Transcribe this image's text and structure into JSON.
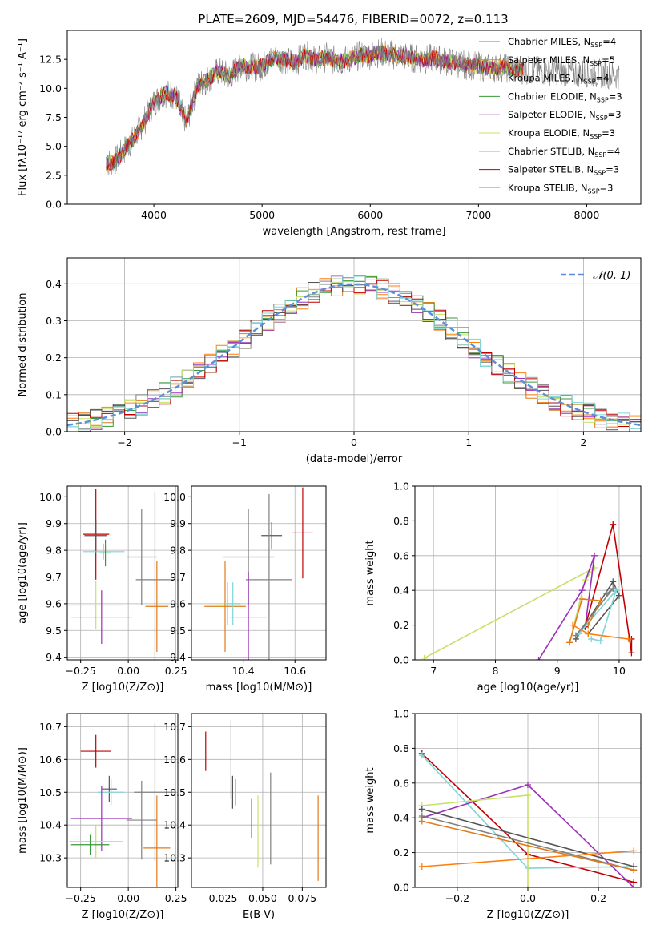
{
  "figure": {
    "title": "PLATE=2609, MJD=54476, FIBERID=0072, z=0.113"
  },
  "colors": {
    "Chabrier MILES": "#808080",
    "Salpeter MILES": "#ff7f0e",
    "Kroupa MILES": "#e07b1a",
    "Chabrier ELODIE": "#3a9a3a",
    "Salpeter ELODIE": "#9b30b8",
    "Kroupa ELODIE": "#c8e06a",
    "Chabrier STELIB": "#555555",
    "Salpeter STELIB": "#c00000",
    "Kroupa STELIB": "#7ed6d6"
  },
  "chart_data": [
    {
      "id": "spectrum",
      "type": "line",
      "xlabel": "wavelength [Angstrom, rest frame]",
      "ylabel": "Flux [fλ10⁻¹⁷ erg cm⁻² s⁻¹ A⁻¹]",
      "xlim": [
        3200,
        8500
      ],
      "ylim": [
        0,
        15
      ],
      "xticks": [
        4000,
        5000,
        6000,
        7000,
        8000
      ],
      "yticks": [
        0.0,
        2.5,
        5.0,
        7.5,
        10.0,
        12.5
      ],
      "grid": false,
      "legend_placement": "right",
      "legend": [
        "Chabrier MILES, N_SSP=4",
        "Salpeter MILES, N_SSP=5",
        "Kroupa MILES, N_SSP=4",
        "Chabrier ELODIE, N_SSP=3",
        "Salpeter ELODIE, N_SSP=3",
        "Kroupa ELODIE, N_SSP=3",
        "Chabrier STELIB, N_SSP=4",
        "Salpeter STELIB, N_SSP=3",
        "Kroupa STELIB, N_SSP=3"
      ],
      "series": [
        {
          "name": "data",
          "x": [
            3560,
            3650,
            3800,
            3900,
            4000,
            4100,
            4200,
            4300,
            4400,
            4500,
            4600,
            4700,
            4800,
            4900,
            5000,
            5100,
            5200,
            5300,
            5400,
            5500,
            5600,
            5700,
            5800,
            5900,
            6000,
            6100,
            6200,
            6300,
            6400,
            6500,
            6600,
            6700,
            6800,
            6900,
            7000,
            7100,
            7200,
            7300,
            7400,
            7600,
            7800,
            8000,
            8200,
            8300
          ],
          "y": [
            3.5,
            3.8,
            5.5,
            7.0,
            8.8,
            9.6,
            9.4,
            7.0,
            10.2,
            10.8,
            11.5,
            11.0,
            12.0,
            11.8,
            11.9,
            12.6,
            12.5,
            12.2,
            12.9,
            12.4,
            12.7,
            12.3,
            12.5,
            12.8,
            12.9,
            13.1,
            12.9,
            12.8,
            12.6,
            12.5,
            12.6,
            12.3,
            12.2,
            12.0,
            11.9,
            11.7,
            11.8,
            11.7,
            11.6,
            11.5,
            11.4,
            11.3,
            11.2,
            11.1
          ]
        }
      ]
    },
    {
      "id": "residuals",
      "type": "step",
      "xlabel": "(data-model)/error",
      "ylabel": "Normed distribution",
      "xlim": [
        -2.5,
        2.5
      ],
      "ylim": [
        0,
        0.47
      ],
      "xticks": [
        -2,
        -1,
        0,
        1,
        2
      ],
      "yticks": [
        0.0,
        0.1,
        0.2,
        0.3,
        0.4
      ],
      "grid": true,
      "legend": [
        "𝒩(0, 1)"
      ],
      "legend_placement": "top-right",
      "gaussian": {
        "mu": 0,
        "sigma": 1,
        "color": "#5b8fd9"
      }
    },
    {
      "id": "age_vs_Z",
      "type": "errorbar",
      "xlabel": "Z [log10(Z/Z⊙)]",
      "ylabel": "age  [log10(age/yr)]",
      "xlim": [
        -0.32,
        0.26
      ],
      "ylim": [
        9.39,
        10.04
      ],
      "xticks": [
        -0.25,
        0.0,
        0.25
      ],
      "xticklabels": [
        "−0.25",
        "0.00",
        "0.25"
      ],
      "yticks": [
        9.4,
        9.5,
        9.6,
        9.7,
        9.8,
        9.9,
        10.0
      ],
      "grid": true,
      "points": [
        {
          "series": "Salpeter STELIB",
          "x": -0.17,
          "y": 9.86,
          "xerr": 0.07,
          "yerr": 0.17
        },
        {
          "series": "Chabrier STELIB",
          "x": -0.17,
          "y": 9.855,
          "xerr": 0.06,
          "yerr": 0.06
        },
        {
          "series": "Kroupa STELIB",
          "x": -0.13,
          "y": 9.795,
          "xerr": 0.11,
          "yerr": 0.03
        },
        {
          "series": "Chabrier ELODIE",
          "x": -0.12,
          "y": 9.79,
          "xerr": 0.03,
          "yerr": 0.05
        },
        {
          "series": "Chabrier MILES",
          "x": 0.07,
          "y": 9.775,
          "xerr": 0.08,
          "yerr": 0.18
        },
        {
          "series": "Chabrier MILES",
          "x": 0.14,
          "y": 9.69,
          "xerr": 0.1,
          "yerr": 0.33
        },
        {
          "series": "Kroupa ELODIE",
          "x": -0.17,
          "y": 9.595,
          "xerr": 0.14,
          "yerr": 0.09
        },
        {
          "series": "Kroupa MILES",
          "x": 0.15,
          "y": 9.59,
          "xerr": 0.06,
          "yerr": 0.17
        },
        {
          "series": "Salpeter ELODIE",
          "x": -0.14,
          "y": 9.55,
          "xerr": 0.16,
          "yerr": 0.1
        }
      ]
    },
    {
      "id": "age_vs_mass",
      "type": "errorbar",
      "xlabel": "mass [log10(M/M⊙)]",
      "ylabel": "",
      "xlim": [
        10.2,
        10.72
      ],
      "ylim": [
        9.39,
        10.04
      ],
      "xticks": [
        10.4,
        10.6
      ],
      "yticks": [
        9.4,
        9.5,
        9.6,
        9.7,
        9.8,
        9.9,
        10.0
      ],
      "grid": true,
      "points": [
        {
          "series": "Salpeter STELIB",
          "x": 10.63,
          "y": 9.865,
          "xerr": 0.04,
          "yerr": 0.17
        },
        {
          "series": "Chabrier STELIB",
          "x": 10.51,
          "y": 9.855,
          "xerr": 0.04,
          "yerr": 0.05
        },
        {
          "series": "Chabrier MILES",
          "x": 10.42,
          "y": 9.775,
          "xerr": 0.1,
          "yerr": 0.18
        },
        {
          "series": "Chabrier MILES",
          "x": 10.5,
          "y": 9.69,
          "xerr": 0.09,
          "yerr": 0.32
        },
        {
          "series": "Kroupa ELODIE",
          "x": 10.34,
          "y": 9.6,
          "xerr": 0.05,
          "yerr": 0.08
        },
        {
          "series": "Kroupa MILES",
          "x": 10.33,
          "y": 9.59,
          "xerr": 0.08,
          "yerr": 0.17
        },
        {
          "series": "Salpeter ELODIE",
          "x": 10.42,
          "y": 9.55,
          "xerr": 0.07,
          "yerr": 0.17
        },
        {
          "series": "Kroupa STELIB",
          "x": 10.36,
          "y": 9.6,
          "xerr": 0.03,
          "yerr": 0.08
        }
      ]
    },
    {
      "id": "weight_vs_age",
      "type": "line",
      "xlabel": "age  [log10(age/yr)]",
      "ylabel": "mass weight",
      "xlim": [
        6.7,
        10.35
      ],
      "ylim": [
        0,
        1
      ],
      "xticks": [
        7,
        8,
        9,
        10
      ],
      "yticks": [
        0.0,
        0.2,
        0.4,
        0.6,
        0.8,
        1.0
      ],
      "grid": true,
      "series": [
        {
          "name": "Kroupa ELODIE",
          "x": [
            6.85,
            9.6,
            9.45,
            9.2
          ],
          "y": [
            0.01,
            0.53,
            0.46,
            0.1
          ]
        },
        {
          "name": "Salpeter ELODIE",
          "x": [
            8.7,
            9.4,
            9.6,
            9.45
          ],
          "y": [
            0.0,
            0.4,
            0.6,
            0.19
          ]
        },
        {
          "name": "Salpeter STELIB",
          "x": [
            9.45,
            9.9,
            10.2,
            10.2
          ],
          "y": [
            0.19,
            0.78,
            0.04,
            0.12
          ]
        },
        {
          "name": "Chabrier STELIB",
          "x": [
            9.3,
            9.9,
            10.0,
            9.5
          ],
          "y": [
            0.12,
            0.45,
            0.37,
            0.15
          ]
        },
        {
          "name": "Kroupa STELIB",
          "x": [
            9.35,
            9.95,
            9.7,
            9.55
          ],
          "y": [
            0.15,
            0.4,
            0.11,
            0.12
          ]
        },
        {
          "name": "Kroupa MILES",
          "x": [
            9.2,
            9.4,
            9.7,
            9.5
          ],
          "y": [
            0.1,
            0.35,
            0.34,
            0.2
          ]
        },
        {
          "name": "Chabrier MILES",
          "x": [
            9.3,
            9.9,
            9.8
          ],
          "y": [
            0.14,
            0.41,
            0.38
          ]
        },
        {
          "name": "Salpeter MILES",
          "x": [
            9.25,
            9.5,
            10.15
          ],
          "y": [
            0.2,
            0.15,
            0.12
          ]
        }
      ]
    },
    {
      "id": "mass_vs_Z",
      "type": "errorbar",
      "xlabel": "Z [log10(Z/Z⊙)]",
      "ylabel": "mass [log10(M/M⊙)]",
      "xlim": [
        -0.32,
        0.26
      ],
      "ylim": [
        10.21,
        10.74
      ],
      "xticks": [
        -0.25,
        0.0,
        0.25
      ],
      "xticklabels": [
        "−0.25",
        "0.00",
        "0.25"
      ],
      "yticks": [
        10.3,
        10.4,
        10.5,
        10.6,
        10.7
      ],
      "grid": true,
      "points": [
        {
          "series": "Salpeter STELIB",
          "x": -0.17,
          "y": 10.625,
          "xerr": 0.08,
          "yerr": 0.05
        },
        {
          "series": "Chabrier STELIB",
          "x": -0.1,
          "y": 10.51,
          "xerr": 0.04,
          "yerr": 0.04
        },
        {
          "series": "Kroupa STELIB",
          "x": -0.09,
          "y": 10.5,
          "xerr": 0.07,
          "yerr": 0.04
        },
        {
          "series": "Chabrier MILES",
          "x": 0.07,
          "y": 10.415,
          "xerr": 0.08,
          "yerr": 0.12
        },
        {
          "series": "Kroupa MILES",
          "x": 0.15,
          "y": 10.33,
          "xerr": 0.07,
          "yerr": 0.16
        },
        {
          "series": "Chabrier MILES",
          "x": 0.14,
          "y": 10.5,
          "xerr": 0.11,
          "yerr": 0.21
        },
        {
          "series": "Salpeter ELODIE",
          "x": -0.14,
          "y": 10.42,
          "xerr": 0.16,
          "yerr": 0.1
        },
        {
          "series": "Kroupa ELODIE",
          "x": -0.17,
          "y": 10.35,
          "xerr": 0.14,
          "yerr": 0.05
        },
        {
          "series": "Chabrier ELODIE",
          "x": -0.2,
          "y": 10.34,
          "xerr": 0.1,
          "yerr": 0.03
        }
      ]
    },
    {
      "id": "mass_vs_EBV",
      "type": "errorbar",
      "xlabel": "E(B-V)",
      "ylabel": "",
      "xlim": [
        0.005,
        0.09
      ],
      "ylim": [
        10.21,
        10.74
      ],
      "xticks": [
        0.025,
        0.05,
        0.075
      ],
      "xticklabels": [
        "0.025",
        "0.050",
        "0.075"
      ],
      "yticks": [
        10.3,
        10.4,
        10.5,
        10.6,
        10.7
      ],
      "grid": true,
      "points": [
        {
          "series": "Salpeter STELIB",
          "x": 0.014,
          "y": 10.625,
          "xerr": 0,
          "yerr": 0.06
        },
        {
          "series": "Chabrier MILES",
          "x": 0.03,
          "y": 10.6,
          "xerr": 0,
          "yerr": 0.12
        },
        {
          "series": "Chabrier STELIB",
          "x": 0.031,
          "y": 10.5,
          "xerr": 0,
          "yerr": 0.05
        },
        {
          "series": "Kroupa STELIB",
          "x": 0.033,
          "y": 10.5,
          "xerr": 0,
          "yerr": 0.04
        },
        {
          "series": "Salpeter ELODIE",
          "x": 0.043,
          "y": 10.42,
          "xerr": 0,
          "yerr": 0.06
        },
        {
          "series": "Kroupa ELODIE",
          "x": 0.047,
          "y": 10.38,
          "xerr": 0,
          "yerr": 0.11
        },
        {
          "series": "Chabrier MILES",
          "x": 0.055,
          "y": 10.42,
          "xerr": 0,
          "yerr": 0.14
        },
        {
          "series": "Kroupa MILES",
          "x": 0.085,
          "y": 10.36,
          "xerr": 0,
          "yerr": 0.13
        }
      ]
    },
    {
      "id": "weight_vs_Z",
      "type": "line",
      "xlabel": "Z [log10(Z/Z⊙)]",
      "ylabel": "mass weight",
      "xlim": [
        -0.32,
        0.32
      ],
      "ylim": [
        0,
        1
      ],
      "xticks": [
        -0.2,
        0.0,
        0.2
      ],
      "xticklabels": [
        "−0.2",
        "0.0",
        "0.2"
      ],
      "yticks": [
        0.0,
        0.2,
        0.4,
        0.6,
        0.8,
        1.0
      ],
      "grid": true,
      "series": [
        {
          "name": "Salpeter STELIB",
          "x": [
            -0.3,
            0.0,
            0.3
          ],
          "y": [
            0.77,
            0.19,
            0.03
          ]
        },
        {
          "name": "Kroupa STELIB",
          "x": [
            -0.3,
            0.0,
            0.3
          ],
          "y": [
            0.76,
            0.11,
            0.12
          ]
        },
        {
          "name": "Salpeter ELODIE",
          "x": [
            -0.3,
            0.0,
            0.3
          ],
          "y": [
            0.4,
            0.59,
            0.0
          ]
        },
        {
          "name": "Kroupa ELODIE",
          "x": [
            -0.3,
            0.0,
            0.0
          ],
          "y": [
            0.47,
            0.53,
            0.0
          ]
        },
        {
          "name": "Chabrier STELIB",
          "x": [
            -0.3,
            0.3
          ],
          "y": [
            0.45,
            0.12
          ]
        },
        {
          "name": "Chabrier MILES",
          "x": [
            -0.3,
            0.3
          ],
          "y": [
            0.41,
            0.1
          ]
        },
        {
          "name": "Kroupa MILES",
          "x": [
            -0.3,
            0.3
          ],
          "y": [
            0.38,
            0.1
          ]
        },
        {
          "name": "Salpeter MILES",
          "x": [
            -0.3,
            0.3
          ],
          "y": [
            0.12,
            0.21
          ]
        }
      ]
    }
  ]
}
